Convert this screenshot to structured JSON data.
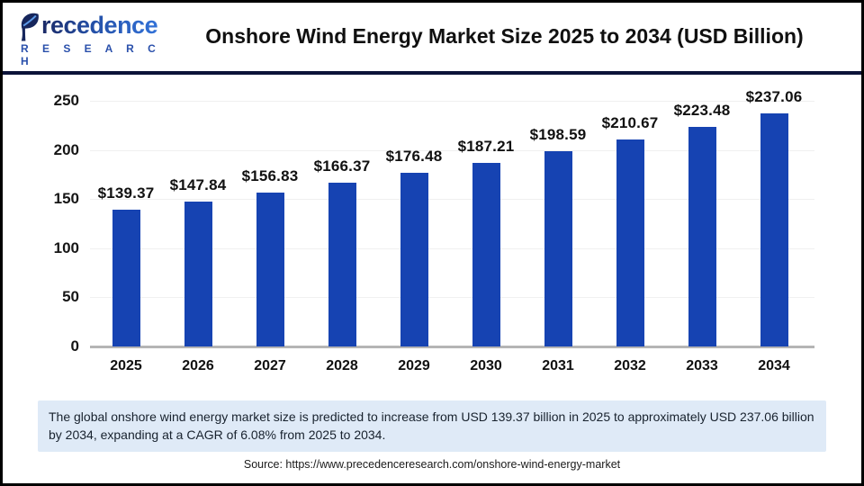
{
  "header": {
    "logo": {
      "brand_full": "Precedence",
      "brand_rest": "recedence",
      "subtitle": "R E S E A R C H"
    },
    "title": "Onshore Wind Energy Market Size 2025 to 2034 (USD Billion)"
  },
  "chart_data": {
    "type": "bar",
    "title": "Onshore Wind Energy Market Size 2025 to 2034 (USD Billion)",
    "categories": [
      "2025",
      "2026",
      "2027",
      "2028",
      "2029",
      "2030",
      "2031",
      "2032",
      "2033",
      "2034"
    ],
    "values": [
      139.37,
      147.84,
      156.83,
      166.37,
      176.48,
      187.21,
      198.59,
      210.67,
      223.48,
      237.06
    ],
    "value_labels": [
      "$139.37",
      "$147.84",
      "$156.83",
      "$166.37",
      "$176.48",
      "$187.21",
      "$198.59",
      "$210.67",
      "$223.48",
      "$237.06"
    ],
    "xlabel": "",
    "ylabel": "",
    "ylim": [
      0,
      250
    ],
    "yticks": [
      0,
      50,
      100,
      150,
      200,
      250
    ],
    "grid": true,
    "legend_position": "none",
    "bar_color": "#1643b2"
  },
  "summary": {
    "text": "The global onshore wind energy market size is predicted to increase from USD 139.37 billion in 2025 to approximately USD 237.06 billion by 2034, expanding at a CAGR of 6.08% from 2025 to 2034."
  },
  "source": {
    "text": "Source: https://www.precedenceresearch.com/onshore-wind-energy-market"
  },
  "colors": {
    "bar": "#1643b2",
    "separator": "#0c1339",
    "summary_bg": "#dfeaf7",
    "gridline": "#f0f0f0",
    "axis_line": "#b5b5b5"
  }
}
